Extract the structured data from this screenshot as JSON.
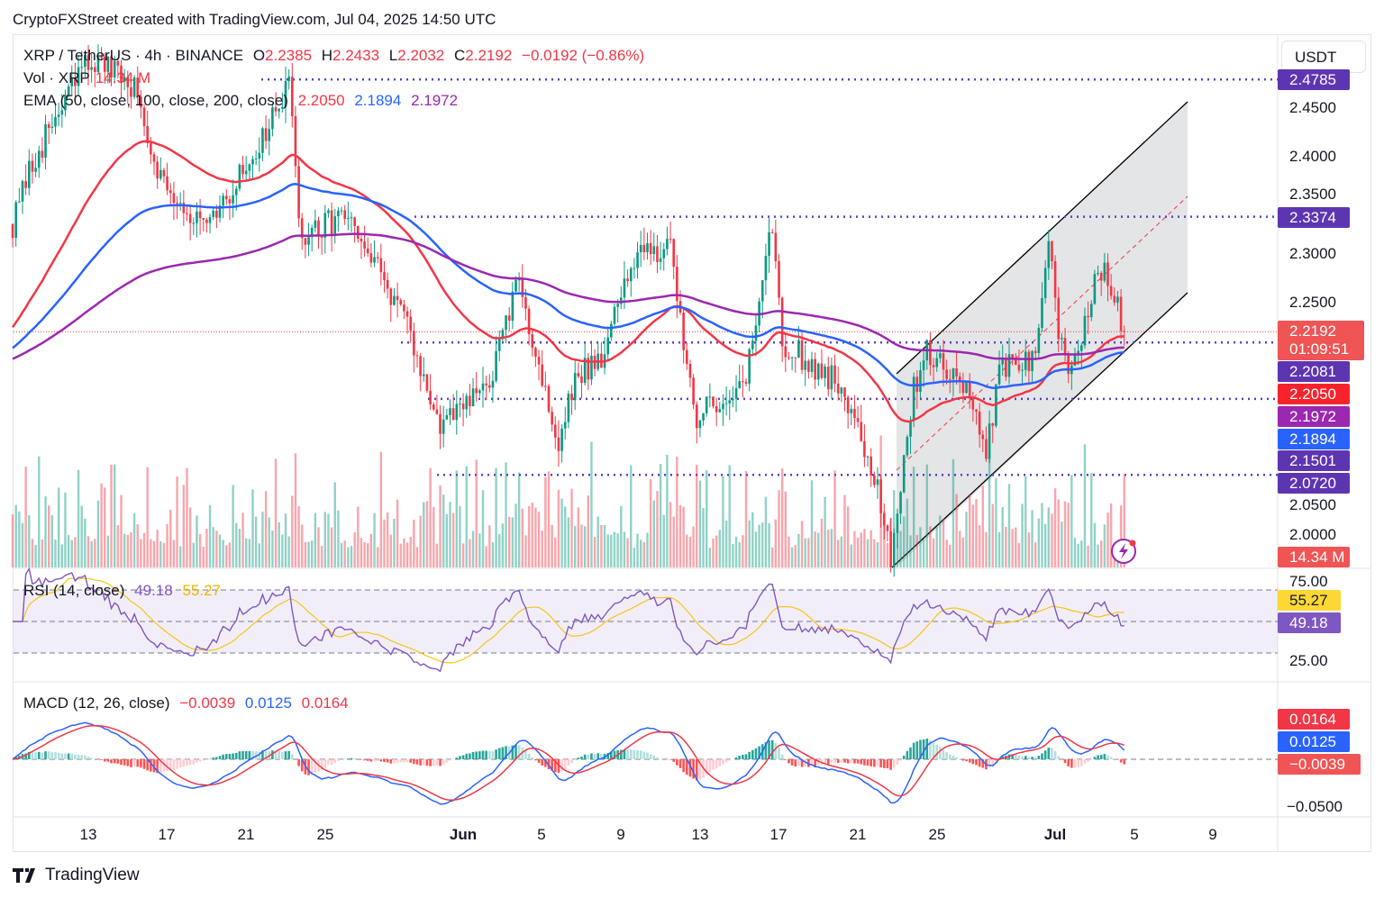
{
  "header": {
    "title": "CryptoFXStreet created with TradingView.com, Jul 04, 2025 14:50 UTC"
  },
  "legend": {
    "symbol": "XRP / TetherUS · 4h · BINANCE",
    "o_label": "O",
    "o": "2.2385",
    "h_label": "H",
    "h": "2.2433",
    "l_label": "L",
    "l": "2.2032",
    "c_label": "C",
    "c": "2.2192",
    "change": "−0.0192 (−0.86%)",
    "vol_label": "Vol · XRP",
    "vol": "14.34 M",
    "ema_label": "EMA (50, close, 100, close, 200, close)",
    "ema50": "2.2050",
    "ema100": "2.1894",
    "ema200": "2.1972",
    "rsi_label": "RSI (14, close)",
    "rsi": "49.18",
    "rsi_ma": "55.27",
    "macd_label": "MACD (12, 26, close)",
    "macd_hist": "−0.0039",
    "macd": "0.0125",
    "macd_signal": "0.0164"
  },
  "axis": {
    "currency": "USDT",
    "countdown": "01:09:51"
  },
  "colors": {
    "up": "#089981",
    "down": "#f23645",
    "ema50": "#f23645",
    "ema100": "#2962ff",
    "ema200": "#9c27b0",
    "level": "#5b3fc4",
    "rsi": "#7e57c2",
    "rsi_ma": "#f5c518"
  },
  "chart_data": {
    "type": "candlestick",
    "interval": "4h",
    "close_keypoints": [
      [
        "2025-05-09T04:00",
        2.33
      ],
      [
        "2025-05-10T08:00",
        2.4
      ],
      [
        "2025-05-13T00:00",
        2.5
      ],
      [
        "2025-05-15T08:00",
        2.47
      ],
      [
        "2025-05-16T16:00",
        2.38
      ],
      [
        "2025-05-19T00:00",
        2.32
      ],
      [
        "2025-05-22T04:00",
        2.43
      ],
      [
        "2025-05-23T04:00",
        2.47
      ],
      [
        "2025-05-23T20:00",
        2.31
      ],
      [
        "2025-05-25T20:00",
        2.34
      ],
      [
        "2025-05-28T16:00",
        2.25
      ],
      [
        "2025-05-30T20:00",
        2.12
      ],
      [
        "2025-06-02T04:00",
        2.16
      ],
      [
        "2025-06-03T20:00",
        2.27
      ],
      [
        "2025-06-05T20:00",
        2.1
      ],
      [
        "2025-06-06T16:00",
        2.17
      ],
      [
        "2025-06-08T04:00",
        2.2
      ],
      [
        "2025-06-09T20:00",
        2.31
      ],
      [
        "2025-06-11T12:00",
        2.3
      ],
      [
        "2025-06-12T20:00",
        2.13
      ],
      [
        "2025-06-15T08:00",
        2.17
      ],
      [
        "2025-06-16T16:00",
        2.33
      ],
      [
        "2025-06-17T04:00",
        2.21
      ],
      [
        "2025-06-20T08:00",
        2.16
      ],
      [
        "2025-06-21T20:00",
        2.07
      ],
      [
        "2025-06-22T16:00",
        1.99
      ],
      [
        "2025-06-23T20:00",
        2.16
      ],
      [
        "2025-06-24T12:00",
        2.2
      ],
      [
        "2025-06-26T08:00",
        2.17
      ],
      [
        "2025-06-27T12:00",
        2.09
      ],
      [
        "2025-06-28T04:00",
        2.18
      ],
      [
        "2025-06-30T00:00",
        2.19
      ],
      [
        "2025-06-30T16:00",
        2.31
      ],
      [
        "2025-07-01T04:00",
        2.22
      ],
      [
        "2025-07-01T20:00",
        2.17
      ],
      [
        "2025-07-02T20:00",
        2.26
      ],
      [
        "2025-07-03T12:00",
        2.29
      ],
      [
        "2025-07-04T12:00",
        2.2192
      ]
    ],
    "levels": [
      "2.4785",
      "2.3374",
      "2.2081",
      "2.1501",
      "2.0720"
    ],
    "y_ticks": [
      "2.4500",
      "2.4000",
      "2.3500",
      "2.3000",
      "2.2500",
      "2.0500",
      "2.0000"
    ],
    "ylim": [
      1.97,
      2.5
    ],
    "rsi_ticks": [
      "75.00",
      "25.00"
    ],
    "macd_ticks": [
      "−0.0500"
    ],
    "x_ticks": [
      "13",
      "17",
      "21",
      "25",
      "Jun",
      "5",
      "9",
      "13",
      "17",
      "21",
      "25",
      "Jul",
      "5",
      "9"
    ],
    "last_volume": "14.34 M"
  },
  "footer": {
    "brand": "TradingView"
  }
}
